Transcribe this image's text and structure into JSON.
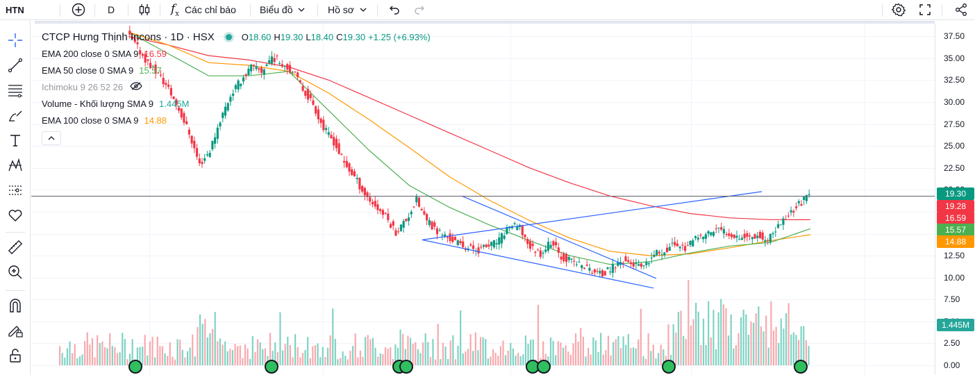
{
  "header": {
    "symbol": "HTN",
    "interval": "D",
    "indicators_label": "Các chỉ báo",
    "chart_menu_label": "Biểu đồ",
    "profile_label": "Hồ sơ",
    "icons": [
      "plus-circle-icon",
      "candles-icon",
      "fx-icon",
      "undo-icon",
      "redo-icon",
      "gear-icon",
      "fullscreen-icon",
      "share-icon"
    ]
  },
  "toolbar": {
    "tools": [
      "crosshair-icon",
      "trend-line-icon",
      "horizontal-lines-icon",
      "brush-icon",
      "text-icon",
      "pattern-icon",
      "forecast-icon",
      "heart-icon",
      "ruler-icon",
      "zoom-in-icon",
      "magnet-icon",
      "lock-drawing-icon",
      "lock-icon"
    ]
  },
  "legend": {
    "title": "CTCP Hưng Thịnh Incons · 1D · HSX",
    "ohlc": [
      {
        "k": "O",
        "v": "18.60"
      },
      {
        "k": "H",
        "v": "19.30"
      },
      {
        "k": "L",
        "v": "18.40"
      },
      {
        "k": "C",
        "v": "19.30"
      }
    ],
    "change": "+1.25 (+6.93%)",
    "indicators": [
      {
        "label": "EMA 200 close 0 SMA 9",
        "value": "16.59",
        "color": "#f23645",
        "faded": false
      },
      {
        "label": "EMA 50 close 0 SMA 9",
        "value": "15.57",
        "color": "#4caf50",
        "faded": false
      },
      {
        "label": "Ichimoku 9 26 52 26",
        "value": "",
        "color": "#9598a1",
        "faded": true
      },
      {
        "label": "Volume - Khối lượng SMA 9",
        "value": "1.445M",
        "color": "#26a69a",
        "faded": false
      },
      {
        "label": "EMA 100 close 0 SMA 9",
        "value": "14.88",
        "color": "#ff9800",
        "faded": false
      }
    ]
  },
  "price_scale": {
    "ticks": [
      "37.50",
      "35.00",
      "32.50",
      "30.00",
      "27.50",
      "25.00",
      "22.50",
      "20.00",
      "17.50",
      "15.00",
      "12.50",
      "10.00",
      "7.50",
      "5.00",
      "2.50",
      "0.00"
    ],
    "badges": [
      {
        "label": "19.30",
        "color": "#089981"
      },
      {
        "label": "19.28",
        "color": "#f23645"
      },
      {
        "label": "16.59",
        "color": "#f23645"
      },
      {
        "label": "15.57",
        "color": "#4caf50"
      },
      {
        "label": "14.88",
        "color": "#ff9800"
      },
      {
        "label": "1.445M",
        "color": "#26a69a"
      }
    ]
  },
  "colors": {
    "up": "#089981",
    "down": "#f23645",
    "ema200": "#f23645",
    "ema100": "#ff9800",
    "ema50": "#4caf50",
    "trendline": "#2962ff",
    "vol_up": "#7fd3c3",
    "vol_down": "#f7a9ae"
  },
  "chart_data": {
    "type": "candlestick",
    "yrange": [
      0,
      38
    ],
    "current_price": 19.3,
    "ema200": [
      37.5,
      36.5,
      35.3,
      34.8,
      34.0,
      32.5,
      30.5,
      28.5,
      26.5,
      24.5,
      22.5,
      20.8,
      19.3,
      18.2,
      17.3,
      16.8,
      16.6,
      16.59
    ],
    "ema100": [
      38.0,
      36.5,
      34.5,
      34.2,
      33.5,
      31.0,
      28.0,
      24.8,
      21.5,
      18.8,
      16.5,
      14.5,
      13.0,
      12.5,
      12.7,
      13.4,
      14.2,
      14.88
    ],
    "ema50": [
      38.0,
      35.5,
      33.0,
      33.0,
      33.5,
      29.0,
      24.5,
      20.5,
      18.0,
      16.0,
      14.2,
      12.5,
      11.5,
      11.8,
      12.8,
      13.6,
      14.0,
      15.57
    ],
    "closes": [
      37.8,
      36.2,
      34.5,
      33.2,
      31.5,
      29.2,
      26.5,
      22.9,
      24.5,
      28.0,
      30.8,
      32.5,
      34.0,
      33.5,
      35.2,
      34.5,
      33.5,
      31.5,
      29.8,
      27.0,
      25.5,
      23.0,
      21.5,
      19.5,
      18.2,
      17.0,
      15.2,
      16.6,
      18.8,
      16.4,
      15.3,
      14.6,
      13.9,
      13.4,
      13.2,
      13.6,
      14.2,
      16.0,
      15.6,
      13.5,
      12.8,
      14.1,
      12.4,
      11.9,
      11.4,
      10.8,
      10.3,
      11.2,
      12.0,
      11.5,
      11.0,
      12.6,
      13.1,
      13.9,
      13.4,
      14.3,
      14.9,
      15.5,
      15.2,
      14.8,
      14.6,
      14.9,
      14.1,
      15.9,
      17.2,
      18.4,
      19.3
    ]
  }
}
